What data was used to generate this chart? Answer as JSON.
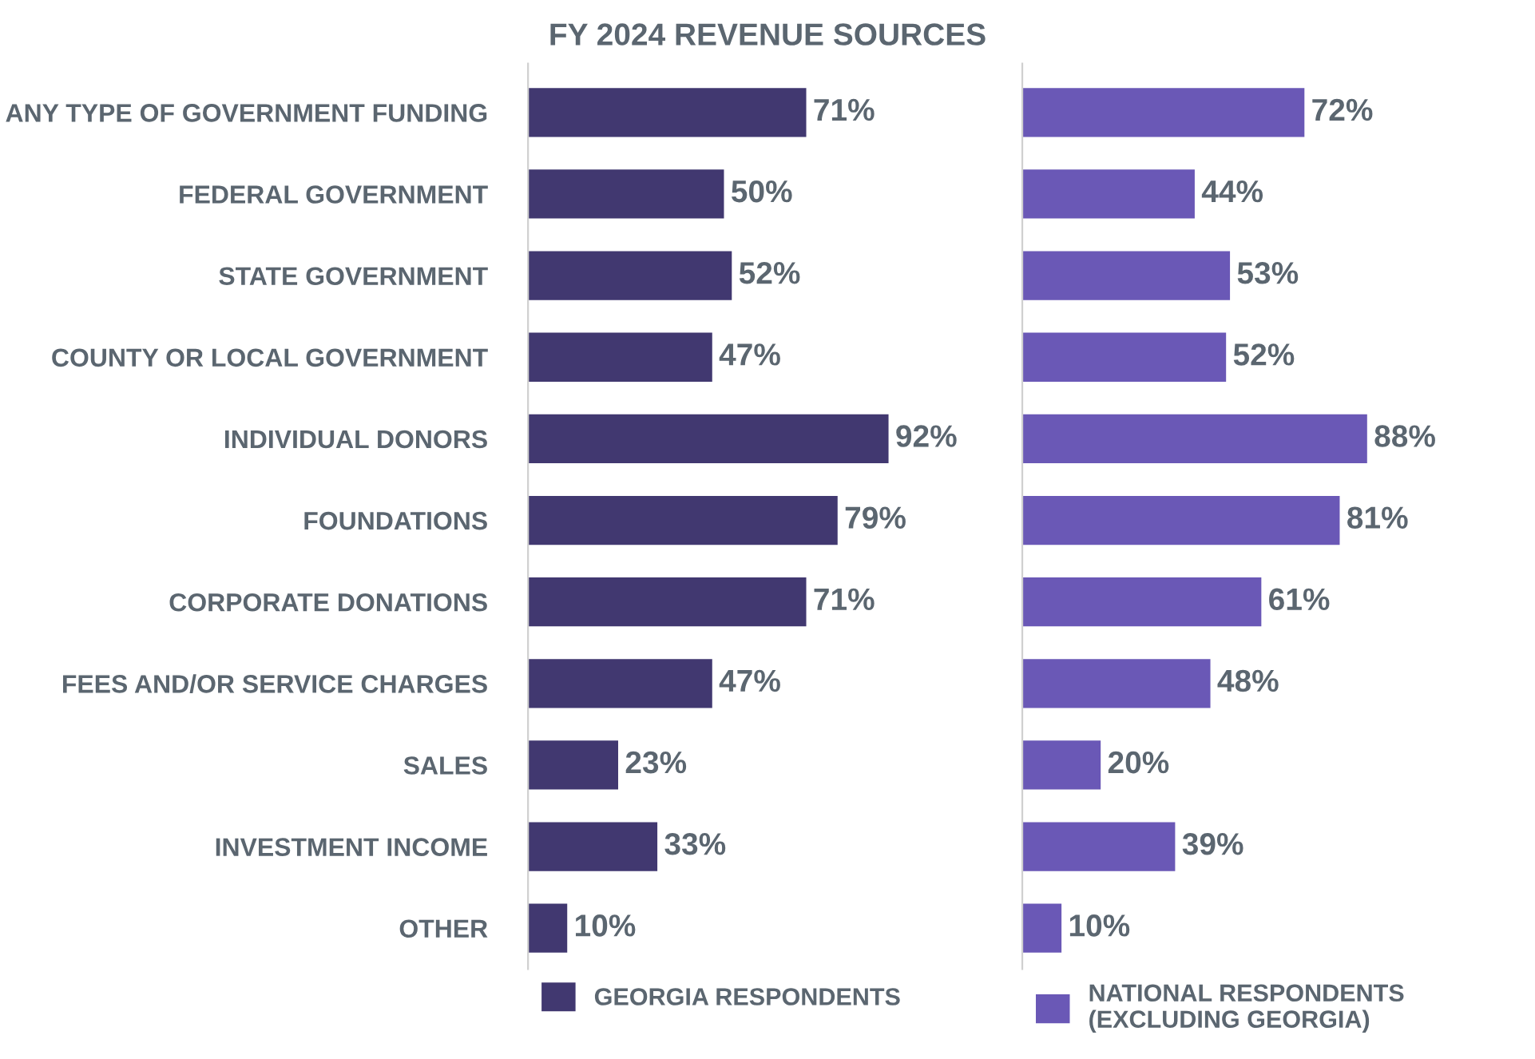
{
  "chart_data": [
    {
      "type": "bar",
      "orientation": "horizontal",
      "title": "FY 2024 REVENUE SOURCES",
      "categories": [
        "ANY TYPE OF GOVERNMENT FUNDING",
        "FEDERAL GOVERNMENT",
        "STATE GOVERNMENT",
        "COUNTY OR LOCAL GOVERNMENT",
        "INDIVIDUAL DONORS",
        "FOUNDATIONS",
        "CORPORATE DONATIONS",
        "FEES AND/OR SERVICE CHARGES",
        "SALES",
        "INVESTMENT INCOME",
        "OTHER"
      ],
      "series": [
        {
          "name": "GEORGIA RESPONDENTS",
          "color": "#413870",
          "values": [
            71,
            50,
            52,
            47,
            92,
            79,
            71,
            47,
            23,
            33,
            10
          ],
          "value_labels": [
            "71%",
            "50%",
            "52%",
            "47%",
            "92%",
            "79%",
            "71%",
            "47%",
            "23%",
            "33%",
            "10%"
          ]
        }
      ],
      "tick_labels": "y",
      "legend": "bottom",
      "grid": false
    },
    {
      "type": "bar",
      "orientation": "horizontal",
      "categories": [
        null,
        null,
        null,
        null,
        null,
        null,
        null,
        null,
        null,
        null,
        null
      ],
      "series": [
        {
          "name": "NATIONAL RESPONDENTS\n(EXCLUDING GEORGIA)",
          "color": "#6a58b6",
          "values": [
            72,
            44,
            53,
            52,
            88,
            81,
            61,
            48,
            20,
            39,
            10
          ],
          "value_labels": [
            "72%",
            "44%",
            "53%",
            "52%",
            "88%",
            "81%",
            "61%",
            "48%",
            "20%",
            "39%",
            "10%"
          ]
        }
      ],
      "tick_labels": false,
      "legend": "bottom",
      "grid": false
    }
  ]
}
